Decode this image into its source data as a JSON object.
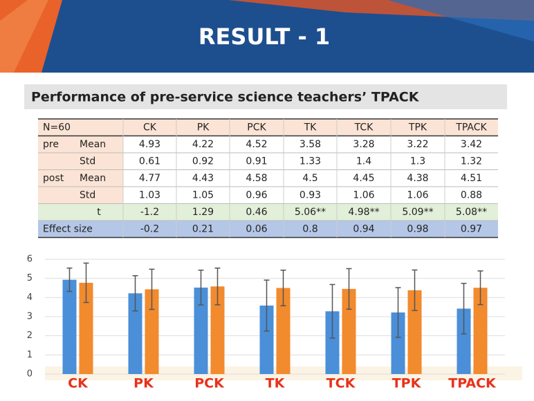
{
  "header": {
    "title": "RESULT - 1"
  },
  "subtitle": "Performance of pre-service science teachers’ TPACK",
  "table": {
    "header": [
      "N=60",
      "CK",
      "PK",
      "PCK",
      "TK",
      "TCK",
      "TPK",
      "TPACK"
    ],
    "rows": [
      {
        "group": "pre",
        "label": "Mean",
        "cells": [
          "4.93",
          "4.22",
          "4.52",
          "3.58",
          "3.28",
          "3.22",
          "3.42"
        ]
      },
      {
        "label": "Std",
        "cells": [
          "0.61",
          "0.92",
          "0.91",
          "1.33",
          "1.4",
          "1.3",
          "1.32"
        ]
      },
      {
        "group": "post",
        "label": "Mean",
        "cells": [
          "4.77",
          "4.43",
          "4.58",
          "4.5",
          "4.45",
          "4.38",
          "4.51"
        ]
      },
      {
        "label": "Std",
        "cells": [
          "1.03",
          "1.05",
          "0.96",
          "0.93",
          "1.06",
          "1.06",
          "0.88"
        ]
      },
      {
        "label": "t",
        "cells": [
          "-1.2",
          "1.29",
          "0.46",
          "5.06**",
          "4.98**",
          "5.09**",
          "5.08**"
        ]
      },
      {
        "group": "Effect size",
        "cells": [
          "-0.2",
          "0.21",
          "0.06",
          "0.8",
          "0.94",
          "0.98",
          "0.97"
        ]
      }
    ]
  },
  "chart_data": {
    "type": "bar",
    "categories": [
      "CK",
      "PK",
      "PCK",
      "TK",
      "TCK",
      "TPK",
      "TPACK"
    ],
    "series": [
      {
        "color": "#4a8fd8",
        "values": [
          4.93,
          4.22,
          4.52,
          3.58,
          3.28,
          3.22,
          3.42
        ],
        "errors": [
          0.61,
          0.92,
          0.91,
          1.33,
          1.4,
          1.3,
          1.32
        ]
      },
      {
        "color": "#f28a2e",
        "values": [
          4.77,
          4.43,
          4.58,
          4.5,
          4.45,
          4.38,
          4.51
        ],
        "errors": [
          1.03,
          1.05,
          0.96,
          0.93,
          1.06,
          1.06,
          0.88
        ]
      }
    ],
    "ylim": [
      0,
      6
    ],
    "yticks": [
      0,
      1,
      2,
      3,
      4,
      5,
      6
    ],
    "grid": true
  }
}
